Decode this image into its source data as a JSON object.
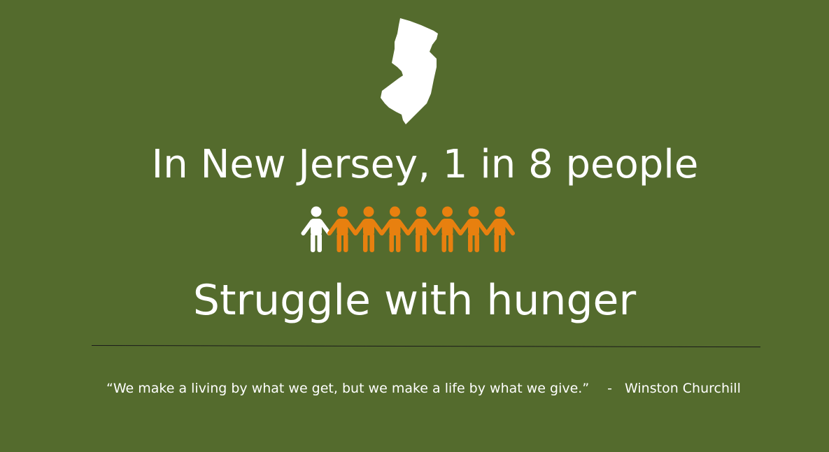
{
  "icons": {
    "state_map": "new-jersey-map-icon",
    "person": "person-icon"
  },
  "headline": {
    "line1": "In New Jersey, 1 in 8 people",
    "line2": "Struggle with hunger"
  },
  "people": {
    "total": 8,
    "highlighted": 1
  },
  "quote": {
    "text": "“We make a living by what we get, but we make a life by what we give.”",
    "dash": "-",
    "author": "Winston Churchill"
  },
  "colors": {
    "background": "#546b2d",
    "highlight_person": "#ffffff",
    "person": "#e8800f",
    "text": "#ffffff"
  }
}
